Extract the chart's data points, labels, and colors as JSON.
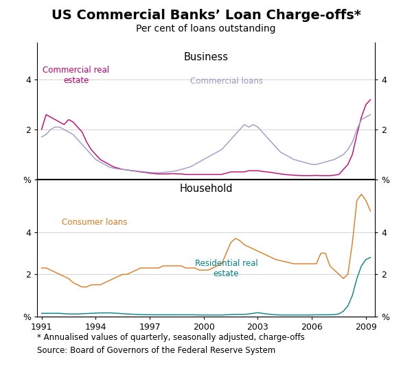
{
  "title": "US Commercial Banks’ Loan Charge-offs*",
  "subtitle": "Per cent of loans outstanding",
  "footnote1": "* Annualised values of quarterly, seasonally adjusted, charge-offs",
  "footnote2": "Source: Board of Governors of the Federal Reserve System",
  "title_fontsize": 14,
  "subtitle_fontsize": 10,
  "footnote_fontsize": 8.5,
  "business_label": "Business",
  "household_label": "Household",
  "commercial_re_label": "Commercial real\nestate",
  "commercial_loans_label": "Commercial loans",
  "consumer_loans_label": "Consumer loans",
  "residential_re_label": "Residential real\nestate",
  "color_commercial_re": "#C4006A",
  "color_commercial_loans": "#9999CC",
  "color_consumer_loans": "#E07820",
  "color_residential_re": "#008080",
  "xlim_left": 1990.75,
  "xlim_right": 2009.5,
  "business_ylim": [
    0,
    5.5
  ],
  "household_ylim": [
    0,
    6.5
  ],
  "business_yticks": [
    0,
    2,
    4
  ],
  "household_yticks": [
    0,
    2,
    4
  ],
  "xticks": [
    1991,
    1994,
    1997,
    2000,
    2003,
    2006,
    2009
  ],
  "years": [
    1991.0,
    1991.25,
    1991.5,
    1991.75,
    1992.0,
    1992.25,
    1992.5,
    1992.75,
    1993.0,
    1993.25,
    1993.5,
    1993.75,
    1994.0,
    1994.25,
    1994.5,
    1994.75,
    1995.0,
    1995.25,
    1995.5,
    1995.75,
    1996.0,
    1996.25,
    1996.5,
    1996.75,
    1997.0,
    1997.25,
    1997.5,
    1997.75,
    1998.0,
    1998.25,
    1998.5,
    1998.75,
    1999.0,
    1999.25,
    1999.5,
    1999.75,
    2000.0,
    2000.25,
    2000.5,
    2000.75,
    2001.0,
    2001.25,
    2001.5,
    2001.75,
    2002.0,
    2002.25,
    2002.5,
    2002.75,
    2003.0,
    2003.25,
    2003.5,
    2003.75,
    2004.0,
    2004.25,
    2004.5,
    2004.75,
    2005.0,
    2005.25,
    2005.5,
    2005.75,
    2006.0,
    2006.25,
    2006.5,
    2006.75,
    2007.0,
    2007.25,
    2007.5,
    2007.75,
    2008.0,
    2008.25,
    2008.5,
    2008.75,
    2009.0,
    2009.25
  ],
  "commercial_re": [
    2.0,
    2.6,
    2.5,
    2.4,
    2.3,
    2.2,
    2.4,
    2.3,
    2.1,
    1.9,
    1.5,
    1.2,
    1.0,
    0.8,
    0.7,
    0.6,
    0.5,
    0.45,
    0.4,
    0.38,
    0.35,
    0.33,
    0.3,
    0.28,
    0.25,
    0.23,
    0.22,
    0.22,
    0.22,
    0.23,
    0.22,
    0.22,
    0.2,
    0.2,
    0.2,
    0.2,
    0.2,
    0.2,
    0.2,
    0.2,
    0.2,
    0.25,
    0.3,
    0.3,
    0.3,
    0.3,
    0.35,
    0.35,
    0.35,
    0.32,
    0.3,
    0.28,
    0.25,
    0.22,
    0.2,
    0.18,
    0.17,
    0.16,
    0.15,
    0.15,
    0.15,
    0.16,
    0.15,
    0.15,
    0.15,
    0.17,
    0.2,
    0.4,
    0.6,
    1.0,
    1.8,
    2.5,
    3.0,
    3.2
  ],
  "commercial_loans": [
    1.7,
    1.8,
    2.0,
    2.1,
    2.1,
    2.0,
    1.9,
    1.8,
    1.6,
    1.4,
    1.2,
    1.0,
    0.8,
    0.7,
    0.6,
    0.5,
    0.45,
    0.42,
    0.4,
    0.38,
    0.36,
    0.34,
    0.32,
    0.3,
    0.28,
    0.27,
    0.27,
    0.28,
    0.3,
    0.32,
    0.35,
    0.4,
    0.45,
    0.5,
    0.6,
    0.7,
    0.8,
    0.9,
    1.0,
    1.1,
    1.2,
    1.4,
    1.6,
    1.8,
    2.0,
    2.2,
    2.1,
    2.2,
    2.1,
    1.9,
    1.7,
    1.5,
    1.3,
    1.1,
    1.0,
    0.9,
    0.8,
    0.75,
    0.7,
    0.65,
    0.6,
    0.6,
    0.65,
    0.7,
    0.75,
    0.8,
    0.9,
    1.0,
    1.2,
    1.5,
    2.0,
    2.4,
    2.5,
    2.6
  ],
  "consumer_loans": [
    2.3,
    2.3,
    2.2,
    2.1,
    2.0,
    1.9,
    1.8,
    1.6,
    1.5,
    1.4,
    1.4,
    1.5,
    1.5,
    1.5,
    1.6,
    1.7,
    1.8,
    1.9,
    2.0,
    2.0,
    2.1,
    2.2,
    2.3,
    2.3,
    2.3,
    2.3,
    2.3,
    2.4,
    2.4,
    2.4,
    2.4,
    2.4,
    2.3,
    2.3,
    2.3,
    2.2,
    2.2,
    2.2,
    2.3,
    2.4,
    2.5,
    3.0,
    3.5,
    3.7,
    3.6,
    3.4,
    3.3,
    3.2,
    3.1,
    3.0,
    2.9,
    2.8,
    2.7,
    2.65,
    2.6,
    2.55,
    2.5,
    2.5,
    2.5,
    2.5,
    2.5,
    2.5,
    3.0,
    3.0,
    2.4,
    2.2,
    2.0,
    1.8,
    2.0,
    3.5,
    5.5,
    5.8,
    5.5,
    5.0
  ],
  "residential_re": [
    0.15,
    0.15,
    0.15,
    0.15,
    0.15,
    0.13,
    0.12,
    0.12,
    0.12,
    0.13,
    0.14,
    0.15,
    0.16,
    0.17,
    0.17,
    0.17,
    0.16,
    0.15,
    0.13,
    0.12,
    0.11,
    0.1,
    0.09,
    0.09,
    0.08,
    0.08,
    0.08,
    0.08,
    0.08,
    0.08,
    0.08,
    0.08,
    0.08,
    0.08,
    0.08,
    0.07,
    0.07,
    0.07,
    0.07,
    0.07,
    0.07,
    0.08,
    0.09,
    0.1,
    0.1,
    0.1,
    0.12,
    0.15,
    0.18,
    0.15,
    0.12,
    0.1,
    0.08,
    0.07,
    0.07,
    0.07,
    0.07,
    0.07,
    0.07,
    0.07,
    0.07,
    0.08,
    0.08,
    0.08,
    0.08,
    0.09,
    0.12,
    0.25,
    0.5,
    1.0,
    1.8,
    2.4,
    2.7,
    2.8
  ]
}
